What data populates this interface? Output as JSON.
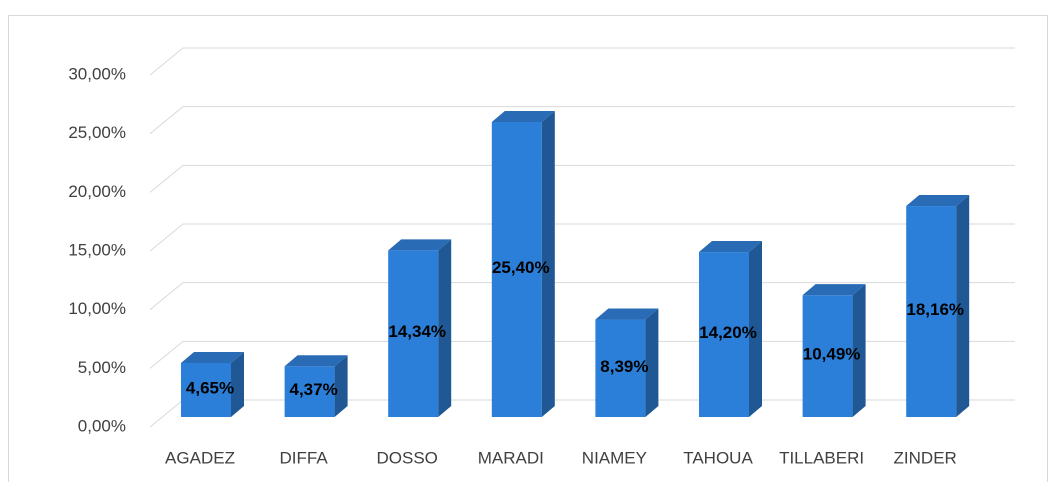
{
  "chart_data": {
    "type": "bar3d",
    "categories": [
      "AGADEZ",
      "DIFFA",
      "DOSSO",
      "MARADI",
      "NIAMEY",
      "TAHOUA",
      "TILLABERI",
      "ZINDER"
    ],
    "values": [
      4.65,
      4.37,
      14.34,
      25.4,
      8.39,
      14.2,
      10.49,
      18.16
    ],
    "value_labels": [
      "4,65%",
      "4,37%",
      "14,34%",
      "25,40%",
      "8,39%",
      "14,20%",
      "10,49%",
      "18,16%"
    ],
    "color": "#2b7fd8",
    "ylim": [
      0,
      30
    ],
    "yticks": [
      {
        "value": 0,
        "label": "0,00%"
      },
      {
        "value": 5,
        "label": "5,00%"
      },
      {
        "value": 10,
        "label": "10,00%"
      },
      {
        "value": 15,
        "label": "15,00%"
      },
      {
        "value": 20,
        "label": "20,00%"
      },
      {
        "value": 25,
        "label": "25,00%"
      },
      {
        "value": 30,
        "label": "30,00%"
      }
    ],
    "grid": true
  }
}
